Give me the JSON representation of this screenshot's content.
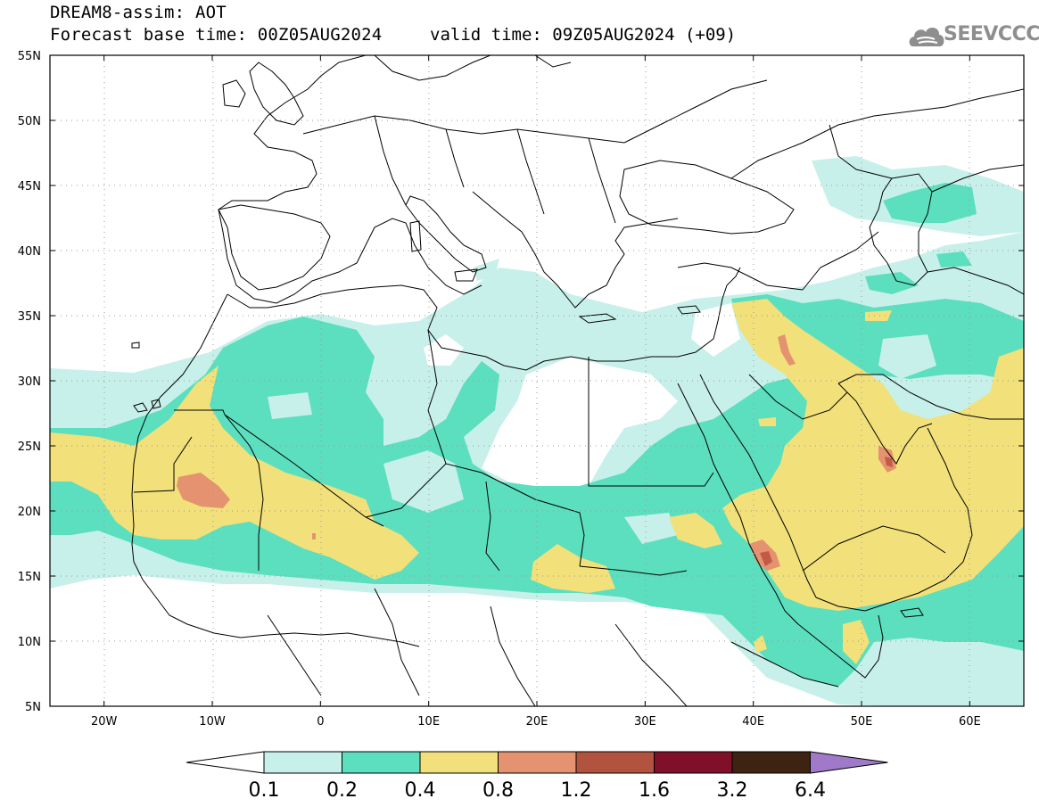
{
  "header": {
    "title": "DREAM8-assim: AOT",
    "base_time": "Forecast base time: 00Z05AUG2024",
    "valid_time": "valid time: 09Z05AUG2024 (+09)",
    "logo_text": "SEEVCCC"
  },
  "map": {
    "lon_ticks": [
      "20W",
      "10W",
      "0",
      "10E",
      "20E",
      "30E",
      "40E",
      "50E",
      "60E"
    ],
    "lat_ticks": [
      "55N",
      "50N",
      "45N",
      "40N",
      "35N",
      "30N",
      "25N",
      "20N",
      "15N",
      "10N",
      "5N"
    ],
    "lon_range": [
      -25,
      65
    ],
    "lat_range": [
      5,
      55
    ]
  },
  "colorbar": {
    "labels": [
      "0.1",
      "0.2",
      "0.4",
      "0.8",
      "1.2",
      "1.6",
      "3.2",
      "6.4"
    ],
    "colors": [
      "#c8f0ea",
      "#5cdfbe",
      "#f2e07a",
      "#e59270",
      "#b1533f",
      "#80102a",
      "#3e2312",
      "#a07ac8"
    ],
    "below_color": "#ffffff"
  },
  "palette": {
    "level_0_1": "#c8f0ea",
    "level_0_2": "#5cdfbe",
    "level_0_4": "#f2e07a",
    "level_0_8": "#e59270",
    "border": "#000000",
    "grid": "#9a9a9a"
  }
}
